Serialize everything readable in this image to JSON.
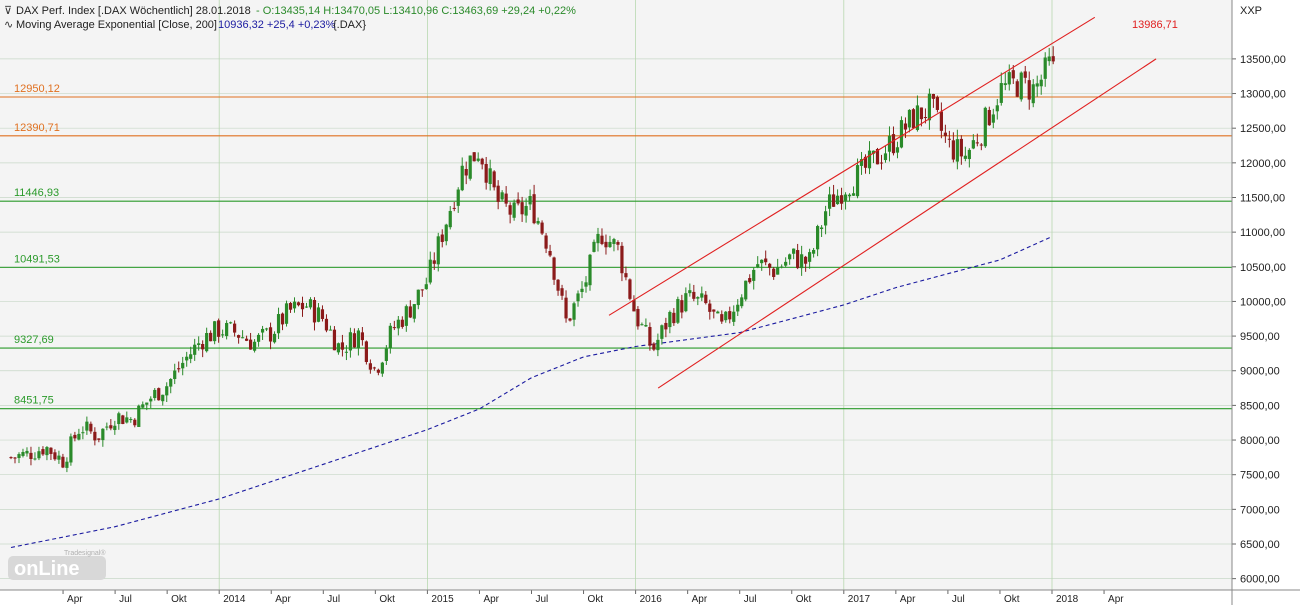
{
  "header": {
    "line1": {
      "title": "DAX Perf. Index [.DAX  Wöchentlich] 28.01.2018",
      "ohlc": "- O:13435,14 H:13470,05 L:13410,96 C:13463,69 +29,24 +0,22%"
    },
    "line2": {
      "title": "Moving Average Exponential [Close, 200]",
      "value": "10936,32 +25,4 +0,23%",
      "symbol": "{.DAX}"
    }
  },
  "watermark": {
    "brand": "onLine",
    "sub": "Tradesignal®"
  },
  "colors": {
    "bull": "#2a8a2a",
    "bear": "#8b1a1a",
    "ma": "#1a1aa0",
    "resistance": "#e07020",
    "support": "#2a9a2a",
    "channel": "#e02020",
    "grid": "#c8d8c8",
    "plot_bg": "#f4f4f4"
  },
  "chart_data": {
    "type": "candlestick",
    "title": "DAX Perf. Index [.DAX  Wöchentlich] 28.01.2018",
    "axis_label_right": "XXP",
    "y_axis": {
      "min": 5800,
      "max": 14000,
      "ticks": [
        6000,
        6500,
        7000,
        7500,
        8000,
        8500,
        9000,
        9500,
        10000,
        10500,
        11000,
        11500,
        12000,
        12500,
        13000,
        13500
      ],
      "tick_labels": [
        "6000,00",
        "6500,00",
        "7000,00",
        "7500,00",
        "8000,00",
        "8500,00",
        "9000,00",
        "9500,00",
        "10000,00",
        "10500,00",
        "11000,00",
        "11500,00",
        "12000,00",
        "12500,00",
        "13000,00",
        "13500,00"
      ]
    },
    "x_axis": {
      "start": "2013-01",
      "end": "2018-07",
      "ticks": [
        {
          "date": "2013-04",
          "label": "Apr"
        },
        {
          "date": "2013-07",
          "label": "Jul"
        },
        {
          "date": "2013-10",
          "label": "Okt"
        },
        {
          "date": "2014-01",
          "label": "2014"
        },
        {
          "date": "2014-04",
          "label": "Apr"
        },
        {
          "date": "2014-07",
          "label": "Jul"
        },
        {
          "date": "2014-10",
          "label": "Okt"
        },
        {
          "date": "2015-01",
          "label": "2015"
        },
        {
          "date": "2015-04",
          "label": "Apr"
        },
        {
          "date": "2015-07",
          "label": "Jul"
        },
        {
          "date": "2015-10",
          "label": "Okt"
        },
        {
          "date": "2016-01",
          "label": "2016"
        },
        {
          "date": "2016-04",
          "label": "Apr"
        },
        {
          "date": "2016-07",
          "label": "Jul"
        },
        {
          "date": "2016-10",
          "label": "Okt"
        },
        {
          "date": "2017-01",
          "label": "2017"
        },
        {
          "date": "2017-04",
          "label": "Apr"
        },
        {
          "date": "2017-07",
          "label": "Jul"
        },
        {
          "date": "2017-10",
          "label": "Okt"
        },
        {
          "date": "2018-01",
          "label": "2018"
        },
        {
          "date": "2018-04",
          "label": "Apr"
        }
      ],
      "year_grid": [
        "2014-01",
        "2015-01",
        "2016-01",
        "2017-01",
        "2018-01"
      ]
    },
    "grid": true,
    "horizontal_levels": [
      {
        "value": 12950.12,
        "label": "12950,12",
        "kind": "resistance"
      },
      {
        "value": 12390.71,
        "label": "12390,71",
        "kind": "resistance"
      },
      {
        "value": 11446.93,
        "label": "11446,93",
        "kind": "support"
      },
      {
        "value": 10491.53,
        "label": "10491,53",
        "kind": "support"
      },
      {
        "value": 9327.69,
        "label": "9327,69",
        "kind": "support"
      },
      {
        "value": 8451.75,
        "label": "8451,75",
        "kind": "support"
      }
    ],
    "channel": {
      "upper": [
        {
          "date": "2015-11-15",
          "value": 9800
        },
        {
          "date": "2018-03-15",
          "value": 14100
        }
      ],
      "lower": [
        {
          "date": "2016-02-10",
          "value": 8750
        },
        {
          "date": "2018-07-01",
          "value": 13500
        }
      ],
      "target_label": "13986,71"
    },
    "moving_average": {
      "name": "Moving Average Exponential [Close, 200]",
      "points": [
        [
          "2013-01",
          6450
        ],
        [
          "2013-07",
          6750
        ],
        [
          "2014-01",
          7150
        ],
        [
          "2014-07",
          7650
        ],
        [
          "2015-01",
          8150
        ],
        [
          "2015-04",
          8450
        ],
        [
          "2015-07",
          8900
        ],
        [
          "2015-10",
          9200
        ],
        [
          "2016-01",
          9350
        ],
        [
          "2016-07",
          9550
        ],
        [
          "2016-10",
          9750
        ],
        [
          "2017-01",
          9950
        ],
        [
          "2017-04",
          10200
        ],
        [
          "2017-07",
          10400
        ],
        [
          "2017-10",
          10600
        ],
        [
          "2018-01",
          10936.32
        ]
      ]
    },
    "price_path": [
      [
        "2013-01",
        7750
      ],
      [
        "2013-02",
        7800
      ],
      [
        "2013-03",
        7900
      ],
      [
        "2013-04",
        7700
      ],
      [
        "2013-05",
        8200
      ],
      [
        "2013-06",
        8050
      ],
      [
        "2013-07",
        8350
      ],
      [
        "2013-08",
        8300
      ],
      [
        "2013-09",
        8600
      ],
      [
        "2013-10",
        8800
      ],
      [
        "2013-11",
        9150
      ],
      [
        "2013-12",
        9450
      ],
      [
        "2014-01",
        9600
      ],
      [
        "2014-02",
        9550
      ],
      [
        "2014-03",
        9400
      ],
      [
        "2014-04",
        9550
      ],
      [
        "2014-05",
        9850
      ],
      [
        "2014-06",
        9950
      ],
      [
        "2014-07",
        9750
      ],
      [
        "2014-08",
        9300
      ],
      [
        "2014-09",
        9550
      ],
      [
        "2014-10",
        9000
      ],
      [
        "2014-11",
        9600
      ],
      [
        "2014-12",
        9900
      ],
      [
        "2015-01",
        10300
      ],
      [
        "2015-02",
        11100
      ],
      [
        "2015-03",
        11900
      ],
      [
        "2015-04",
        12200
      ],
      [
        "2015-05",
        11450
      ],
      [
        "2015-06",
        11250
      ],
      [
        "2015-07",
        11400
      ],
      [
        "2015-08",
        10800
      ],
      [
        "2015-09",
        9700
      ],
      [
        "2015-10",
        10200
      ],
      [
        "2015-11",
        11000
      ],
      [
        "2015-12",
        10750
      ],
      [
        "2016-01",
        9800
      ],
      [
        "2016-02",
        9300
      ],
      [
        "2016-03",
        9800
      ],
      [
        "2016-04",
        10050
      ],
      [
        "2016-05",
        9950
      ],
      [
        "2016-06",
        9600
      ],
      [
        "2016-07",
        10100
      ],
      [
        "2016-08",
        10550
      ],
      [
        "2016-09",
        10450
      ],
      [
        "2016-10",
        10650
      ],
      [
        "2016-11",
        10550
      ],
      [
        "2016-12",
        11350
      ],
      [
        "2017-01",
        11650
      ],
      [
        "2017-02",
        11850
      ],
      [
        "2017-03",
        12100
      ],
      [
        "2017-04",
        12350
      ],
      [
        "2017-05",
        12650
      ],
      [
        "2017-06",
        12800
      ],
      [
        "2017-07",
        12250
      ],
      [
        "2017-08",
        12100
      ],
      [
        "2017-09",
        12500
      ],
      [
        "2017-10",
        13050
      ],
      [
        "2017-11",
        13150
      ],
      [
        "2017-12",
        13050
      ],
      [
        "2018-01",
        13463.69
      ]
    ],
    "last_close": 13463.69
  }
}
